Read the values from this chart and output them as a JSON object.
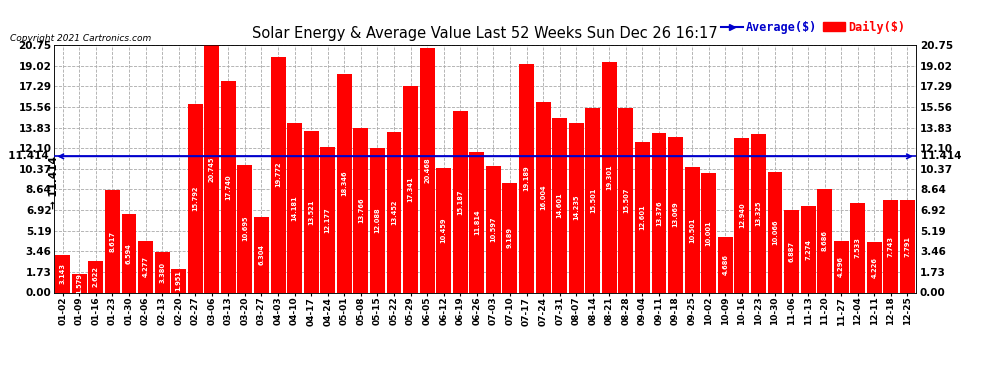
{
  "title": "Solar Energy & Average Value Last 52 Weeks Sun Dec 26 16:17",
  "copyright": "Copyright 2021 Cartronics.com",
  "average_label": "Average($)",
  "daily_label": "Daily($)",
  "average_value": 11.414,
  "background_color": "#ffffff",
  "bar_color": "#ff0000",
  "average_line_color": "#0000cc",
  "yticks": [
    0.0,
    1.73,
    3.46,
    5.19,
    6.92,
    8.64,
    10.37,
    12.1,
    13.83,
    15.56,
    17.29,
    19.02,
    20.75
  ],
  "ylim": [
    0,
    20.75
  ],
  "categories": [
    "01-02",
    "01-09",
    "01-16",
    "01-23",
    "01-30",
    "02-06",
    "02-13",
    "02-20",
    "02-27",
    "03-06",
    "03-13",
    "03-20",
    "03-27",
    "04-03",
    "04-10",
    "04-17",
    "04-24",
    "05-01",
    "05-08",
    "05-15",
    "05-22",
    "05-29",
    "06-05",
    "06-12",
    "06-19",
    "06-26",
    "07-03",
    "07-10",
    "07-17",
    "07-24",
    "07-31",
    "08-07",
    "08-14",
    "08-21",
    "08-28",
    "09-04",
    "09-11",
    "09-18",
    "09-25",
    "10-02",
    "10-09",
    "10-16",
    "10-23",
    "10-30",
    "11-06",
    "11-13",
    "11-20",
    "11-27",
    "12-04",
    "12-11",
    "12-18",
    "12-25"
  ],
  "values": [
    3.143,
    1.579,
    2.622,
    8.617,
    6.594,
    4.277,
    3.38,
    1.951,
    15.792,
    20.745,
    17.74,
    10.695,
    6.304,
    19.772,
    14.181,
    13.521,
    12.177,
    18.346,
    13.766,
    12.088,
    13.452,
    17.341,
    20.468,
    10.459,
    15.187,
    11.814,
    10.597,
    9.189,
    19.189,
    16.004,
    14.601,
    14.235,
    15.501,
    19.301,
    15.507,
    12.601,
    13.376,
    13.069,
    10.501,
    10.001,
    4.686,
    12.94,
    13.325,
    10.066,
    6.887,
    7.274,
    8.686,
    4.296,
    7.533,
    4.226,
    7.743,
    7.791
  ]
}
